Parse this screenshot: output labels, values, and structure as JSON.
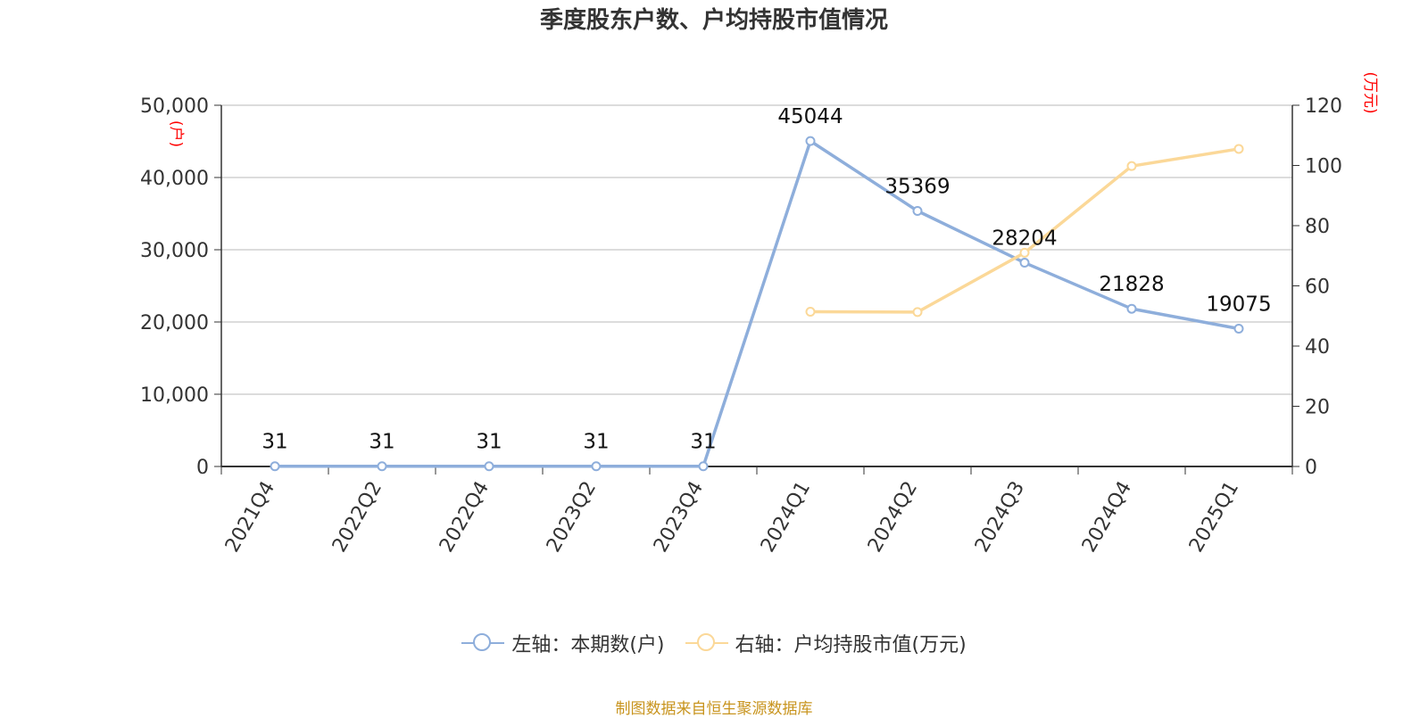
{
  "title": "季度股东户数、户均持股市值情况",
  "source": "制图数据来自恒生聚源数据库",
  "colors": {
    "left_series": "#8eaedb",
    "right_series": "#fbd898",
    "axis_unit": "#ff0000",
    "grid": "#c8c8c8",
    "text": "#333333"
  },
  "chart_data": {
    "type": "line",
    "title": "季度股东户数、户均持股市值情况",
    "categories": [
      "2021Q4",
      "2022Q2",
      "2022Q4",
      "2023Q2",
      "2023Q4",
      "2024Q1",
      "2024Q2",
      "2024Q3",
      "2024Q4",
      "2025Q1"
    ],
    "y_left": {
      "unit_label": "(户)",
      "ylim": [
        0,
        50000
      ],
      "ticks": [
        0,
        10000,
        20000,
        30000,
        40000,
        50000
      ],
      "tick_labels": [
        "0",
        "10,000",
        "20,000",
        "30,000",
        "40,000",
        "50,000"
      ]
    },
    "y_right": {
      "unit_label": "(万元)",
      "ylim": [
        0,
        120
      ],
      "ticks": [
        0,
        20,
        40,
        60,
        80,
        100,
        120
      ],
      "tick_labels": [
        "0",
        "20",
        "40",
        "60",
        "80",
        "100",
        "120"
      ]
    },
    "grid": true,
    "legend_position": "bottom-center",
    "series": [
      {
        "name": "左轴：本期数(户)",
        "axis": "left",
        "values": [
          31,
          31,
          31,
          31,
          31,
          45044,
          35369,
          28204,
          21828,
          19075
        ],
        "labels": [
          "31",
          "31",
          "31",
          "31",
          "31",
          "45044",
          "35369",
          "28204",
          "21828",
          "19075"
        ]
      },
      {
        "name": "右轴：户均持股市值(万元)",
        "axis": "right",
        "values": [
          null,
          null,
          null,
          null,
          null,
          51.4,
          51.3,
          71,
          99.8,
          105.5
        ]
      }
    ]
  }
}
